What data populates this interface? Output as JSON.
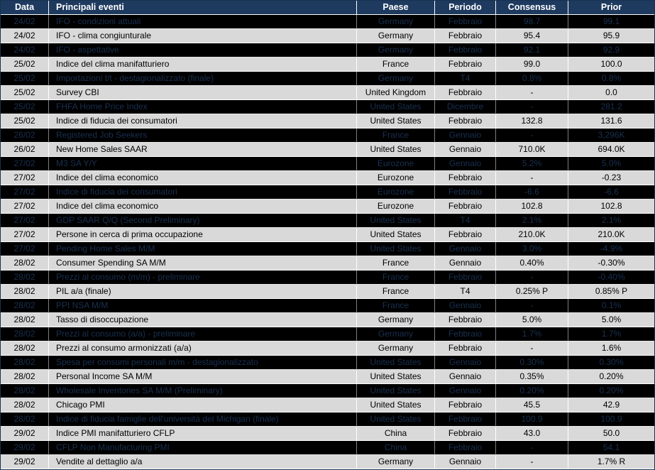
{
  "colors": {
    "header_bg": "#1e3a5f",
    "header_text": "#ffffff",
    "row_light_bg": "#d9d9d9",
    "row_dark_bg": "#000000",
    "row_dark_text": "#1a3050"
  },
  "table": {
    "columns": [
      "Data",
      "Principali eventi",
      "Paese",
      "Periodo",
      "Consensus",
      "Prior"
    ],
    "rows": [
      {
        "variant": "dark",
        "date": "24/02",
        "event": "IFO - condizioni attuali",
        "country": "Germany",
        "period": "Febbraio",
        "consensus": "98.7",
        "prior": "99.1"
      },
      {
        "variant": "light",
        "date": "24/02",
        "event": "IFO - clima congiunturale",
        "country": "Germany",
        "period": "Febbraio",
        "consensus": "95.4",
        "prior": "95.9"
      },
      {
        "variant": "dark",
        "date": "24/02",
        "event": "IFO - aspettative",
        "country": "Germany",
        "period": "Febbraio",
        "consensus": "92.1",
        "prior": "92.9"
      },
      {
        "variant": "light",
        "date": "25/02",
        "event": "Indice del clima manifatturiero",
        "country": "France",
        "period": "Febbraio",
        "consensus": "99.0",
        "prior": "100.0"
      },
      {
        "variant": "dark",
        "date": "25/02",
        "event": "Importazioni t/t - destagionalizzato (finale)",
        "country": "Germany",
        "period": "T4",
        "consensus": "0.8%",
        "prior": "0.8%"
      },
      {
        "variant": "light",
        "date": "25/02",
        "event": "Survey CBI",
        "country": "United Kingdom",
        "period": "Febbraio",
        "consensus": "-",
        "prior": "0.0"
      },
      {
        "variant": "dark",
        "date": "25/02",
        "event": "FHFA Home Price Index",
        "country": "United States",
        "period": "Dicembre",
        "consensus": "-",
        "prior": "281.2"
      },
      {
        "variant": "light",
        "date": "25/02",
        "event": "Indice di fiducia dei consumatori",
        "country": "United States",
        "period": "Febbraio",
        "consensus": "132.8",
        "prior": "131.6"
      },
      {
        "variant": "dark",
        "date": "26/02",
        "event": "Registered Job Seekers",
        "country": "France",
        "period": "Gennaio",
        "consensus": "-",
        "prior": "3,296K"
      },
      {
        "variant": "light",
        "date": "26/02",
        "event": "New Home Sales SAAR",
        "country": "United States",
        "period": "Gennaio",
        "consensus": "710.0K",
        "prior": "694.0K"
      },
      {
        "variant": "dark",
        "date": "27/02",
        "event": "M3 SA Y/Y",
        "country": "Eurozone",
        "period": "Gennaio",
        "consensus": "5.2%",
        "prior": "5.0%"
      },
      {
        "variant": "light",
        "date": "27/02",
        "event": "Indice del clima economico",
        "country": "Eurozone",
        "period": "Febbraio",
        "consensus": "-",
        "prior": "-0.23"
      },
      {
        "variant": "dark",
        "date": "27/02",
        "event": "Indice di fiducia dei consumatori",
        "country": "Eurozone",
        "period": "Febbraio",
        "consensus": "-6.6",
        "prior": "-6.6"
      },
      {
        "variant": "light",
        "date": "27/02",
        "event": "Indice del clima economico",
        "country": "Eurozone",
        "period": "Febbraio",
        "consensus": "102.8",
        "prior": "102.8"
      },
      {
        "variant": "dark",
        "date": "27/02",
        "event": "GDP SAAR Q/Q (Second Preliminary)",
        "country": "United States",
        "period": "T4",
        "consensus": "2.1%",
        "prior": "2.1%"
      },
      {
        "variant": "light",
        "date": "27/02",
        "event": "Persone in cerca di prima occupazione",
        "country": "United States",
        "period": "Febbraio",
        "consensus": "210.0K",
        "prior": "210.0K"
      },
      {
        "variant": "dark",
        "date": "27/02",
        "event": "Pending Home Sales M/M",
        "country": "United States",
        "period": "Gennaio",
        "consensus": "3.0%",
        "prior": "-4.9%"
      },
      {
        "variant": "light",
        "date": "28/02",
        "event": "Consumer Spending SA M/M",
        "country": "France",
        "period": "Gennaio",
        "consensus": "0.40%",
        "prior": "-0.30%"
      },
      {
        "variant": "dark",
        "date": "28/02",
        "event": "Prezzi al consumo (m/m) - preliminare",
        "country": "France",
        "period": "Febbraio",
        "consensus": "-",
        "prior": "-0.40%"
      },
      {
        "variant": "light",
        "date": "28/02",
        "event": "PIL a/a (finale)",
        "country": "France",
        "period": "T4",
        "consensus": "0.25% P",
        "prior": "0.85% P"
      },
      {
        "variant": "dark",
        "date": "28/02",
        "event": "PPI NSA M/M",
        "country": "France",
        "period": "Gennaio",
        "consensus": "-",
        "prior": "0.1%"
      },
      {
        "variant": "light",
        "date": "28/02",
        "event": "Tasso di disoccupazione",
        "country": "Germany",
        "period": "Febbraio",
        "consensus": "5.0%",
        "prior": "5.0%"
      },
      {
        "variant": "dark",
        "date": "28/02",
        "event": "Prezzi al consumo (a/a) - preliminare",
        "country": "Germany",
        "period": "Febbraio",
        "consensus": "1.7%",
        "prior": "1.7%"
      },
      {
        "variant": "light",
        "date": "28/02",
        "event": "Prezzi al consumo armonizzati (a/a)",
        "country": "Germany",
        "period": "Febbraio",
        "consensus": "-",
        "prior": "1.6%"
      },
      {
        "variant": "dark",
        "date": "28/02",
        "event": "Spesa per consumi personali m/m - destagionalizzato",
        "country": "United States",
        "period": "Gennaio",
        "consensus": "0.30%",
        "prior": "0.30%"
      },
      {
        "variant": "light",
        "date": "28/02",
        "event": "Personal Income SA M/M",
        "country": "United States",
        "period": "Gennaio",
        "consensus": "0.35%",
        "prior": "0.20%"
      },
      {
        "variant": "dark",
        "date": "28/02",
        "event": "Wholesale Inventories SA M/M (Preliminary)",
        "country": "United States",
        "period": "Gennaio",
        "consensus": "0.20%",
        "prior": "0.20%"
      },
      {
        "variant": "light",
        "date": "28/02",
        "event": "Chicago PMI",
        "country": "United States",
        "period": "Febbraio",
        "consensus": "45.5",
        "prior": "42.9"
      },
      {
        "variant": "dark",
        "date": "28/02",
        "event": "Indice di fiducia famiglie dell'università del Michigan (finale)",
        "country": "United States",
        "period": "Febbraio",
        "consensus": "100.9",
        "prior": "100.9"
      },
      {
        "variant": "light",
        "date": "29/02",
        "event": "Indice PMI manifatturiero CFLP",
        "country": "China",
        "period": "Febbraio",
        "consensus": "43.0",
        "prior": "50.0"
      },
      {
        "variant": "dark",
        "date": "29/02",
        "event": "CFLP Non Manufacturing PMI",
        "country": "China",
        "period": "Febbraio",
        "consensus": "-",
        "prior": "54.1"
      },
      {
        "variant": "light",
        "date": "29/02",
        "event": "Vendite al dettaglio a/a",
        "country": "Germany",
        "period": "Gennaio",
        "consensus": "-",
        "prior": "1.7% R"
      }
    ]
  }
}
